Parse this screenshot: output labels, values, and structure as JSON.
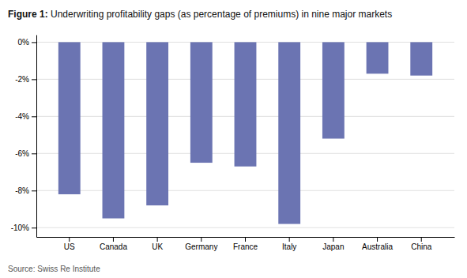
{
  "chart_data": {
    "type": "bar",
    "title": "Figure 1: Underwriting profitability gaps (as percentage of premiums) in nine major markets",
    "categories": [
      "US",
      "Canada",
      "UK",
      "Germany",
      "France",
      "Italy",
      "Japan",
      "Australia",
      "China"
    ],
    "values": [
      -8.2,
      -9.5,
      -8.8,
      -6.5,
      -6.7,
      -9.8,
      -5.2,
      -1.7,
      -1.8
    ],
    "color": "#6B74B2",
    "ylim": [
      -10.5,
      0.4
    ],
    "yticks": [
      {
        "value": 0,
        "label": "0%"
      },
      {
        "value": -2,
        "label": "-2%"
      },
      {
        "value": -4,
        "label": "-4%"
      },
      {
        "value": -6,
        "label": "-6%"
      },
      {
        "value": -8,
        "label": "-8%"
      },
      {
        "value": -10,
        "label": "-10%"
      }
    ],
    "grid": true,
    "annotations": [
      "Source: Swiss Re Institute"
    ]
  }
}
